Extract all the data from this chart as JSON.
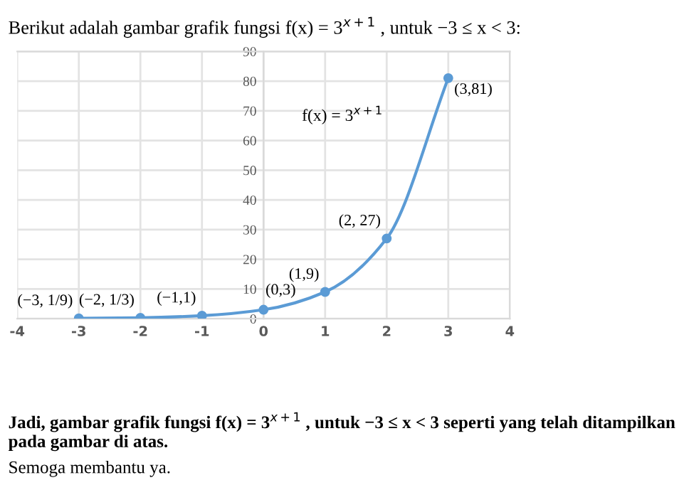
{
  "chart_data": {
    "type": "line",
    "title": "Berikut adalah gambar grafik fungsi f(x) = 3$^{x+1}$ , untuk −3 ≤ x < 3:",
    "x": [
      -3,
      -2,
      -1,
      0,
      1,
      2,
      3
    ],
    "series": [
      {
        "color": "#5b9bd5",
        "values": [
          0.1,
          0.3,
          1,
          3,
          9,
          27,
          81
        ]
      }
    ],
    "marker": "circle",
    "line_style": "solid",
    "xlim": [
      -4,
      4
    ],
    "xticks": [
      -4,
      -3,
      -2,
      -1,
      0,
      1,
      2,
      3,
      4
    ],
    "ylim": [
      0,
      90
    ],
    "yticks": [
      0,
      10,
      20,
      30,
      40,
      50,
      60,
      70,
      80,
      90
    ],
    "grid": true,
    "legend": false,
    "annotations": [
      {
        "text": "(−3, 1/9)",
        "x": -3,
        "y": 0.1
      },
      {
        "text": "(−2, 1/3)",
        "x": -2,
        "y": 0.3
      },
      {
        "text": "(−1,1)",
        "x": -1,
        "y": 1
      },
      {
        "text": "(0,3)",
        "x": 0,
        "y": 3
      },
      {
        "text": "(1,9)",
        "x": 1,
        "y": 9
      },
      {
        "text": "(2, 27)",
        "x": 2,
        "y": 27
      },
      {
        "text": "(3,81)",
        "x": 3,
        "y": 81
      },
      "f(x) = 3$^{x+1}$",
      "Jadi, gambar grafik fungsi f(x) = 3$^{x+1}$ , untuk −3 ≤ x < 3 seperti yang telah ditampilkan pada gambar di atas.",
      "Semoga membantu ya."
    ]
  }
}
